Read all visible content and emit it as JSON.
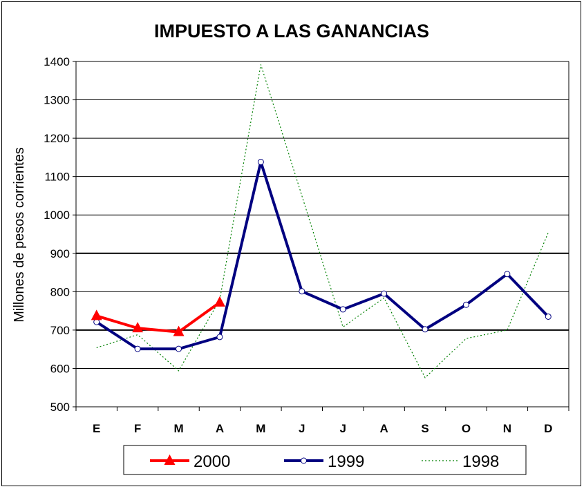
{
  "chart_data": {
    "type": "line",
    "title": "IMPUESTO A LAS GANANCIAS",
    "xlabel": "",
    "ylabel": "Millones de pesos corrientes",
    "ylim": [
      500,
      1400
    ],
    "yticks": [
      500,
      600,
      700,
      800,
      900,
      1000,
      1100,
      1200,
      1300,
      1400
    ],
    "bold_gridlines": [
      700,
      900
    ],
    "categories": [
      "E",
      "F",
      "M",
      "A",
      "M",
      "J",
      "J",
      "A",
      "S",
      "O",
      "N",
      "D"
    ],
    "grid": true,
    "legend_position": "bottom",
    "series": [
      {
        "name": "2000",
        "color": "#ff0000",
        "style": "solid-triangle",
        "values": [
          737,
          705,
          695,
          772,
          null,
          null,
          null,
          null,
          null,
          null,
          null,
          null
        ]
      },
      {
        "name": "1999",
        "color": "#000080",
        "style": "solid-circle",
        "values": [
          721,
          651,
          651,
          682,
          1138,
          801,
          754,
          795,
          702,
          766,
          846,
          735
        ]
      },
      {
        "name": "1998",
        "color": "#008000",
        "style": "dotted",
        "values": [
          654,
          688,
          594,
          779,
          1392,
          1050,
          708,
          784,
          576,
          678,
          700,
          954
        ]
      }
    ]
  }
}
